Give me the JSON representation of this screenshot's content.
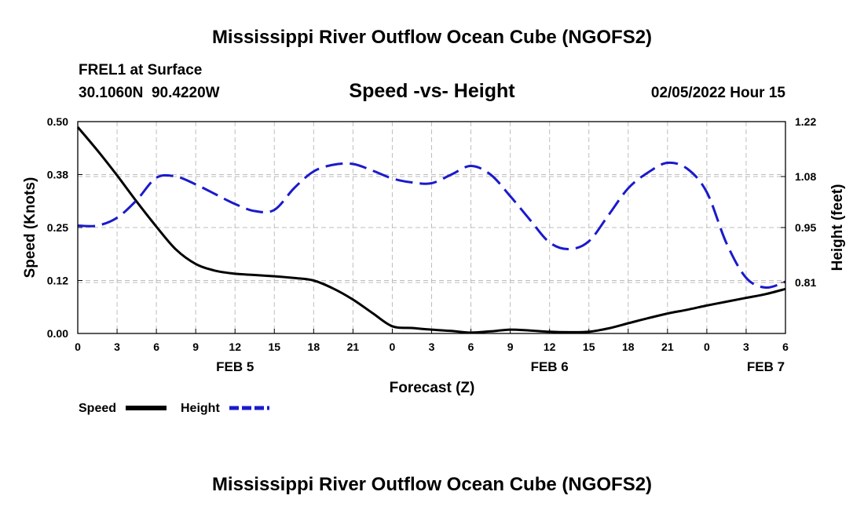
{
  "header": {
    "title": "Mississippi River Outflow Ocean Cube (NGOFS2)",
    "station": "FREL1 at Surface",
    "coords": "30.1060N  90.4220W",
    "subtitle": "Speed -vs- Height",
    "datetime": "02/05/2022 Hour 15",
    "footer_title": "Mississippi River Outflow Ocean Cube (NGOFS2)"
  },
  "chart_data": {
    "type": "line",
    "title": "Speed -vs- Height",
    "xlabel": "Forecast (Z)",
    "ylabel_left": "Speed (Knots)",
    "ylabel_right": "Height (feet)",
    "x_range": [
      0,
      54
    ],
    "x_ticks": [
      0,
      3,
      6,
      9,
      12,
      15,
      18,
      21,
      24,
      27,
      30,
      33,
      36,
      39,
      42,
      45,
      48,
      51,
      54
    ],
    "x_tick_labels": [
      "0",
      "3",
      "6",
      "9",
      "12",
      "15",
      "18",
      "21",
      "0",
      "3",
      "6",
      "9",
      "12",
      "15",
      "18",
      "21",
      "0",
      "3",
      "6"
    ],
    "date_labels": [
      {
        "x": 12,
        "label": "FEB 5"
      },
      {
        "x": 36,
        "label": "FEB 6"
      },
      {
        "x": 52.5,
        "label": "FEB 7"
      }
    ],
    "ylim_left": [
      0,
      0.5
    ],
    "yticks_left": [
      0.0,
      0.125,
      0.25,
      0.375,
      0.5
    ],
    "ytick_labels_left": [
      "0.00",
      "0.12",
      "0.25",
      "0.38",
      "0.50"
    ],
    "ylim_right": [
      0.68,
      1.22
    ],
    "yticks_right": [
      0.81,
      0.95,
      1.08,
      1.22
    ],
    "ytick_labels_right": [
      "0.81",
      "0.95",
      "1.08",
      "1.22"
    ],
    "grid": true,
    "series": [
      {
        "name": "Speed",
        "axis": "left",
        "color": "#000000",
        "dash": "solid",
        "x": [
          0,
          1.5,
          3,
          4.5,
          6,
          7.5,
          9,
          10.5,
          12,
          13.5,
          15,
          16.5,
          18,
          19.5,
          21,
          22.5,
          24,
          25.5,
          27,
          28.5,
          30,
          31.5,
          33,
          34.5,
          36,
          37.5,
          39,
          40.5,
          42,
          43.5,
          45,
          46.5,
          48,
          49.5,
          51,
          52.5,
          54
        ],
        "values": [
          0.487,
          0.432,
          0.373,
          0.311,
          0.252,
          0.198,
          0.164,
          0.148,
          0.141,
          0.138,
          0.135,
          0.131,
          0.125,
          0.106,
          0.08,
          0.048,
          0.017,
          0.013,
          0.009,
          0.006,
          0.002,
          0.005,
          0.009,
          0.007,
          0.004,
          0.003,
          0.004,
          0.012,
          0.024,
          0.036,
          0.047,
          0.056,
          0.066,
          0.075,
          0.084,
          0.093,
          0.105
        ]
      },
      {
        "name": "Height",
        "axis": "right",
        "color": "#1a1acc",
        "dash": "dashed",
        "x": [
          0,
          1.5,
          3,
          4.5,
          6,
          7.5,
          9,
          10.5,
          12,
          13.5,
          15,
          16.5,
          18,
          19.5,
          21,
          22.5,
          24,
          25.5,
          27,
          28.5,
          30,
          31.5,
          33,
          34.5,
          36,
          37.5,
          39,
          40.5,
          42,
          43.5,
          45,
          46.5,
          48,
          49.5,
          51,
          52.5,
          54
        ],
        "values": [
          0.955,
          0.955,
          0.975,
          1.02,
          1.077,
          1.08,
          1.06,
          1.035,
          1.01,
          0.992,
          0.995,
          1.05,
          1.093,
          1.11,
          1.112,
          1.095,
          1.075,
          1.065,
          1.063,
          1.085,
          1.107,
          1.085,
          1.03,
          0.97,
          0.912,
          0.895,
          0.915,
          0.982,
          1.05,
          1.09,
          1.115,
          1.1,
          1.04,
          0.91,
          0.822,
          0.797,
          0.812
        ]
      }
    ],
    "legend": [
      {
        "label": "Speed",
        "color": "#000000",
        "dash": "solid"
      },
      {
        "label": "Height",
        "color": "#1a1acc",
        "dash": "dashed"
      }
    ],
    "legend_position": "bottom-left"
  }
}
